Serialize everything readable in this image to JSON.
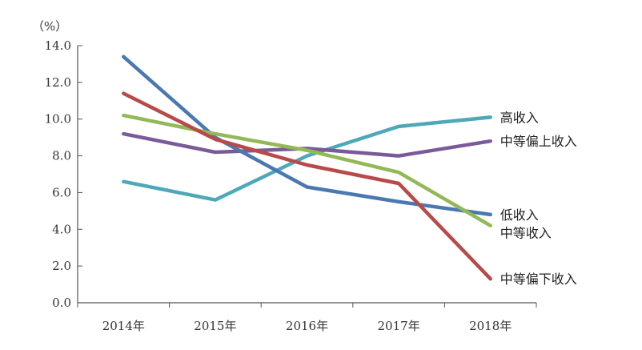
{
  "chart_data": {
    "type": "line",
    "unit_label": "（%）",
    "categories": [
      "2014年",
      "2015年",
      "2016年",
      "2017年",
      "2018年"
    ],
    "ylim": [
      0,
      14
    ],
    "yticks": [
      "0.0",
      "2.0",
      "4.0",
      "6.0",
      "8.0",
      "10.0",
      "12.0",
      "14.0"
    ],
    "grid": false,
    "legend": "inline-right",
    "series": [
      {
        "name": "高收入",
        "color": "#4ea8b8",
        "values": [
          6.6,
          5.6,
          8.0,
          9.6,
          10.1
        ]
      },
      {
        "name": "中等偏上收入",
        "color": "#7a5a99",
        "values": [
          9.2,
          8.2,
          8.4,
          8.0,
          8.8
        ]
      },
      {
        "name": "低收入",
        "color": "#4a78b0",
        "values": [
          13.4,
          9.0,
          6.3,
          5.5,
          4.8
        ]
      },
      {
        "name": "中等收入",
        "color": "#92b957",
        "values": [
          10.2,
          9.2,
          8.3,
          7.1,
          4.2
        ]
      },
      {
        "name": "中等偏下收入",
        "color": "#b84a4a",
        "values": [
          11.4,
          8.9,
          7.5,
          6.5,
          1.3
        ]
      }
    ]
  }
}
